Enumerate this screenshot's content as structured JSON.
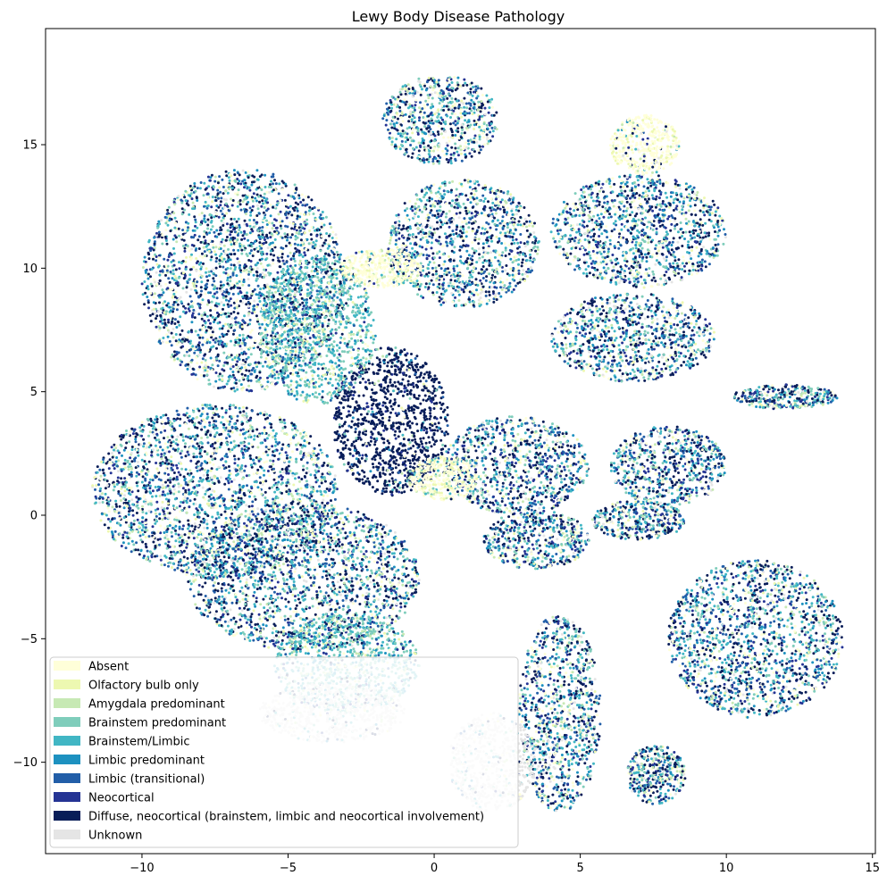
{
  "chart_data": {
    "type": "scatter",
    "title": "Lewy Body Disease Pathology",
    "xlabel": "",
    "ylabel": "",
    "xlim": [
      -13.3,
      15.1
    ],
    "ylim": [
      -13.7,
      19.7
    ],
    "xticks": [
      -10,
      -5,
      0,
      5,
      10,
      15
    ],
    "xtick_labels": [
      "−10",
      "−5",
      "0",
      "5",
      "10",
      "15"
    ],
    "yticks": [
      -10,
      -5,
      0,
      5,
      10,
      15
    ],
    "ytick_labels": [
      "−10",
      "−5",
      "0",
      "5",
      "10",
      "15"
    ],
    "grid": false,
    "legend_position": "lower-left",
    "series": [
      {
        "name": "Absent",
        "color": "#ffffd9"
      },
      {
        "name": "Olfactory bulb only",
        "color": "#edf8b1"
      },
      {
        "name": "Amygdala predominant",
        "color": "#c7e9b4"
      },
      {
        "name": "Brainstem predominant",
        "color": "#7fcdbb"
      },
      {
        "name": "Brainstem/Limbic",
        "color": "#41b6c4"
      },
      {
        "name": "Limbic predominant",
        "color": "#1d91c0"
      },
      {
        "name": "Limbic (transitional)",
        "color": "#225ea8"
      },
      {
        "name": "Neocortical",
        "color": "#253494"
      },
      {
        "name": "Diffuse, neocortical (brainstem, limbic and neocortical involvement)",
        "color": "#081d58"
      },
      {
        "name": "Unknown",
        "color": "#e5e5e5"
      }
    ],
    "clusters": [
      {
        "x": -6.5,
        "y": 9.5,
        "rx": 3.5,
        "ry": 4.5,
        "mix": "mixed"
      },
      {
        "x": -1.5,
        "y": 3.8,
        "rx": 2.0,
        "ry": 3.0,
        "mix": "diffuse"
      },
      {
        "x": 0.2,
        "y": 16.0,
        "rx": 2.0,
        "ry": 1.8,
        "mix": "mixed"
      },
      {
        "x": 1.0,
        "y": 11.0,
        "rx": 2.6,
        "ry": 2.6,
        "mix": "mixed"
      },
      {
        "x": 7.0,
        "y": 11.5,
        "rx": 3.0,
        "ry": 2.3,
        "mix": "mixed"
      },
      {
        "x": 6.8,
        "y": 7.2,
        "rx": 2.8,
        "ry": 1.8,
        "mix": "mixed"
      },
      {
        "x": -4.0,
        "y": 7.5,
        "rx": 2.0,
        "ry": 3.0,
        "mix": "teal"
      },
      {
        "x": -7.5,
        "y": 1.0,
        "rx": 4.2,
        "ry": 3.5,
        "mix": "mixed"
      },
      {
        "x": -4.5,
        "y": -2.5,
        "rx": 4.0,
        "ry": 3.0,
        "mix": "mixed"
      },
      {
        "x": -3.0,
        "y": -6.0,
        "rx": 2.5,
        "ry": 2.0,
        "mix": "teal"
      },
      {
        "x": 2.8,
        "y": 2.0,
        "rx": 2.5,
        "ry": 2.0,
        "mix": "mixed"
      },
      {
        "x": 3.5,
        "y": -1.0,
        "rx": 1.8,
        "ry": 1.2,
        "mix": "mixed"
      },
      {
        "x": 8.0,
        "y": 2.0,
        "rx": 2.0,
        "ry": 1.6,
        "mix": "mixed"
      },
      {
        "x": 7.0,
        "y": -0.2,
        "rx": 1.6,
        "ry": 0.8,
        "mix": "mixed"
      },
      {
        "x": 11.0,
        "y": -5.0,
        "rx": 3.0,
        "ry": 3.2,
        "mix": "mixed"
      },
      {
        "x": 7.6,
        "y": -10.5,
        "rx": 1.0,
        "ry": 1.2,
        "mix": "mixed"
      },
      {
        "x": 4.3,
        "y": -8.0,
        "rx": 1.4,
        "ry": 4.0,
        "mix": "mixed"
      },
      {
        "x": 2.0,
        "y": -10.0,
        "rx": 1.5,
        "ry": 2.0,
        "mix": "unknown"
      },
      {
        "x": -3.5,
        "y": -8.0,
        "rx": 2.5,
        "ry": 1.2,
        "mix": "unknown"
      },
      {
        "x": 12.0,
        "y": 4.8,
        "rx": 1.8,
        "ry": 0.5,
        "mix": "mixed"
      },
      {
        "x": -1.8,
        "y": 10.0,
        "rx": 1.4,
        "ry": 0.8,
        "mix": "absent"
      },
      {
        "x": 7.2,
        "y": 15.0,
        "rx": 1.2,
        "ry": 1.2,
        "mix": "absent"
      },
      {
        "x": 0.3,
        "y": 1.5,
        "rx": 1.2,
        "ry": 0.9,
        "mix": "absent"
      }
    ]
  }
}
